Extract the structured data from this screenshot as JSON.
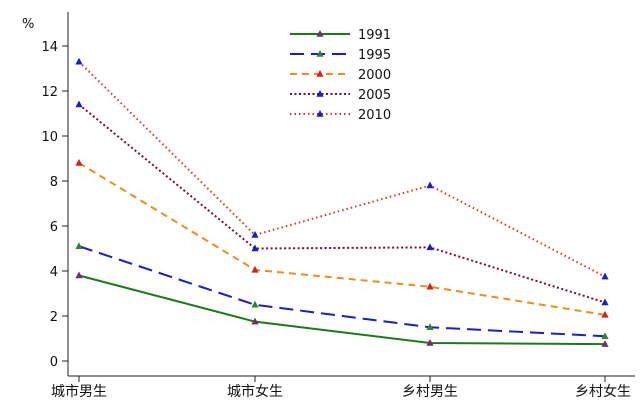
{
  "chart_data": {
    "type": "line",
    "ylabel": "%",
    "ylim": [
      0,
      15
    ],
    "yticks": [
      0,
      2,
      4,
      6,
      8,
      10,
      12,
      14
    ],
    "categories": [
      "城市男生",
      "城市女生",
      "乡村男生",
      "乡村女生"
    ],
    "legend_position": "top-center",
    "grid": false,
    "series": [
      {
        "name": "1991",
        "values": [
          3.8,
          1.75,
          0.8,
          0.75
        ],
        "color": "#1a7a1a",
        "line_style": "solid",
        "marker_color": "#7a2a6a"
      },
      {
        "name": "1995",
        "values": [
          5.1,
          2.5,
          1.5,
          1.1
        ],
        "color": "#1c1cc8",
        "line_style": "long-dash",
        "marker_color": "#2a8a2a"
      },
      {
        "name": "2000",
        "values": [
          8.8,
          4.05,
          3.3,
          2.05
        ],
        "color": "#f08c1e",
        "line_style": "dash",
        "marker_color": "#d42020"
      },
      {
        "name": "2005",
        "values": [
          11.4,
          5.0,
          5.05,
          2.6
        ],
        "color": "#7a1030",
        "line_style": "short-dot",
        "marker_color": "#1c1cc8"
      },
      {
        "name": "2010",
        "values": [
          13.3,
          5.6,
          7.8,
          3.75
        ],
        "color": "#e03030",
        "line_style": "dot",
        "marker_color": "#1c1cc8"
      }
    ]
  }
}
